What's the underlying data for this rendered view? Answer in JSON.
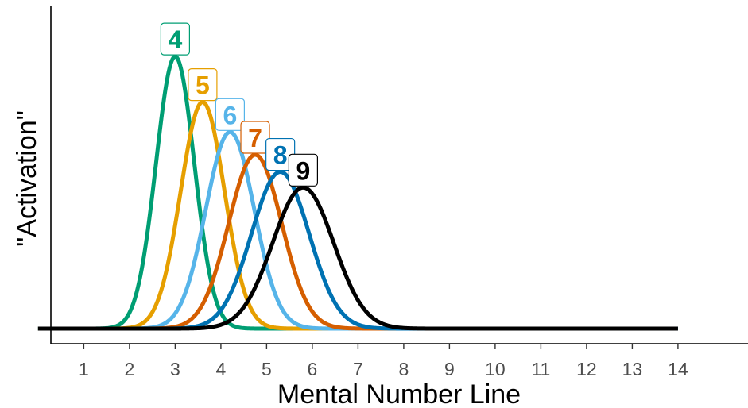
{
  "chart_data": {
    "type": "line",
    "title": "",
    "xlabel": "Mental Number Line",
    "ylabel": "\"Activation\"",
    "xlim": [
      -1.0,
      14.5
    ],
    "ylim": [
      0,
      1
    ],
    "x_ticks": [
      1,
      2,
      3,
      4,
      5,
      6,
      7,
      8,
      9,
      10,
      11,
      12,
      13,
      14
    ],
    "x_range_drawn": [
      0,
      14
    ],
    "grid": false,
    "legend": "none",
    "series": [
      {
        "name": "4",
        "mean": 3.0,
        "sd": 0.42,
        "peak": 0.955,
        "color": "#009E73"
      },
      {
        "name": "5",
        "mean": 3.6,
        "sd": 0.48,
        "peak": 0.795,
        "color": "#E69F00"
      },
      {
        "name": "6",
        "mean": 4.2,
        "sd": 0.53,
        "peak": 0.69,
        "color": "#56B4E9"
      },
      {
        "name": "7",
        "mean": 4.75,
        "sd": 0.58,
        "peak": 0.61,
        "color": "#D55E00"
      },
      {
        "name": "8",
        "mean": 5.3,
        "sd": 0.63,
        "peak": 0.55,
        "color": "#0072B2"
      },
      {
        "name": "9",
        "mean": 5.8,
        "sd": 0.67,
        "peak": 0.495,
        "color": "#000000"
      }
    ]
  }
}
